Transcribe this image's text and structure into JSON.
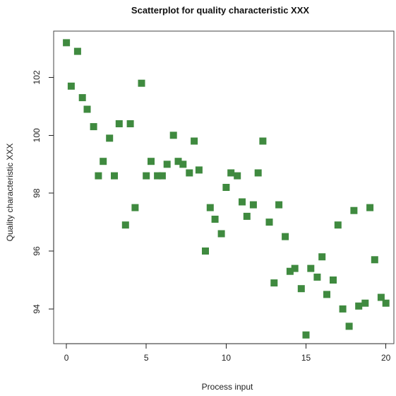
{
  "chart_data": {
    "type": "scatter",
    "title": "Scatterplot for quality characteristic XXX",
    "xlabel": "Process input",
    "ylabel": "Quality characteristic XXX",
    "xlim": [
      -0.8,
      20.5
    ],
    "ylim": [
      92.8,
      103.6
    ],
    "xticks": [
      0,
      5,
      10,
      15,
      20
    ],
    "yticks": [
      94,
      96,
      98,
      100,
      102
    ],
    "grid": false,
    "marker": "square",
    "marker_color": "#3f8a3f",
    "x": [
      0.0,
      0.3,
      0.7,
      1.0,
      1.3,
      1.7,
      2.0,
      2.3,
      2.7,
      3.0,
      3.3,
      3.7,
      4.0,
      4.3,
      4.7,
      5.0,
      5.3,
      5.7,
      6.0,
      6.3,
      6.7,
      7.0,
      7.3,
      7.7,
      8.0,
      8.3,
      8.7,
      9.0,
      9.3,
      9.7,
      10.0,
      10.3,
      10.7,
      11.0,
      11.3,
      11.7,
      12.0,
      12.3,
      12.7,
      13.0,
      13.3,
      13.7,
      14.0,
      14.3,
      14.7,
      15.0,
      15.3,
      15.7,
      16.0,
      16.3,
      16.7,
      17.0,
      17.3,
      17.7,
      18.0,
      18.3,
      18.7,
      19.0,
      19.3,
      19.7,
      20.0
    ],
    "y": [
      103.2,
      101.7,
      102.9,
      101.3,
      100.9,
      100.3,
      98.6,
      99.1,
      99.9,
      98.6,
      100.4,
      96.9,
      100.4,
      97.5,
      101.8,
      98.6,
      99.1,
      98.6,
      98.6,
      99.0,
      100.0,
      99.1,
      99.0,
      98.7,
      99.8,
      98.8,
      96.0,
      97.5,
      97.1,
      96.6,
      98.2,
      98.7,
      98.6,
      97.7,
      97.2,
      97.6,
      98.7,
      99.8,
      97.0,
      94.9,
      97.6,
      96.5,
      95.3,
      95.4,
      94.7,
      93.1,
      95.4,
      95.1,
      95.8,
      94.5,
      95.0,
      96.9,
      94.0,
      93.4,
      97.4,
      94.1,
      94.2,
      97.5,
      95.7,
      94.4,
      94.2
    ]
  }
}
